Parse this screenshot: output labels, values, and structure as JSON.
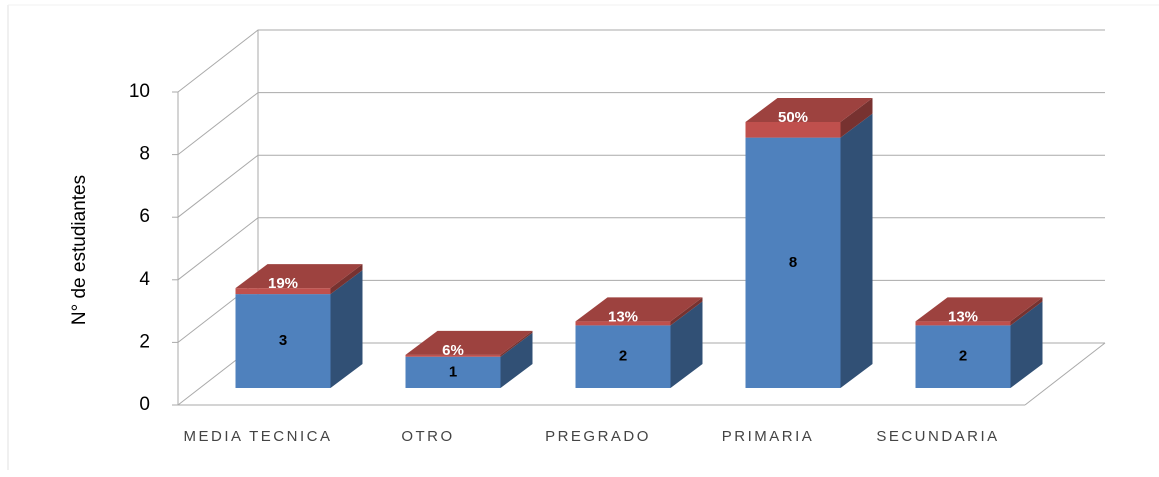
{
  "chart_data": {
    "type": "bar3d_stacked",
    "y_label": "N° de estudiantes",
    "categories": [
      "MEDIA TECNICA",
      "OTRO",
      "PREGRADO",
      "PRIMARIA",
      "SECUNDARIA"
    ],
    "series": [
      {
        "color": "#4f81bd",
        "values": [
          3,
          1,
          2,
          8,
          2
        ]
      },
      {
        "color": "#c0504d",
        "values": [
          0.19,
          0.06,
          0.13,
          0.5,
          0.13
        ],
        "value_labels": [
          "19%",
          "6%",
          "13%",
          "50%",
          "13%"
        ]
      }
    ],
    "ylim": [
      0,
      10
    ],
    "yticks": [
      0,
      2,
      4,
      6,
      8,
      10
    ],
    "grid": true
  }
}
